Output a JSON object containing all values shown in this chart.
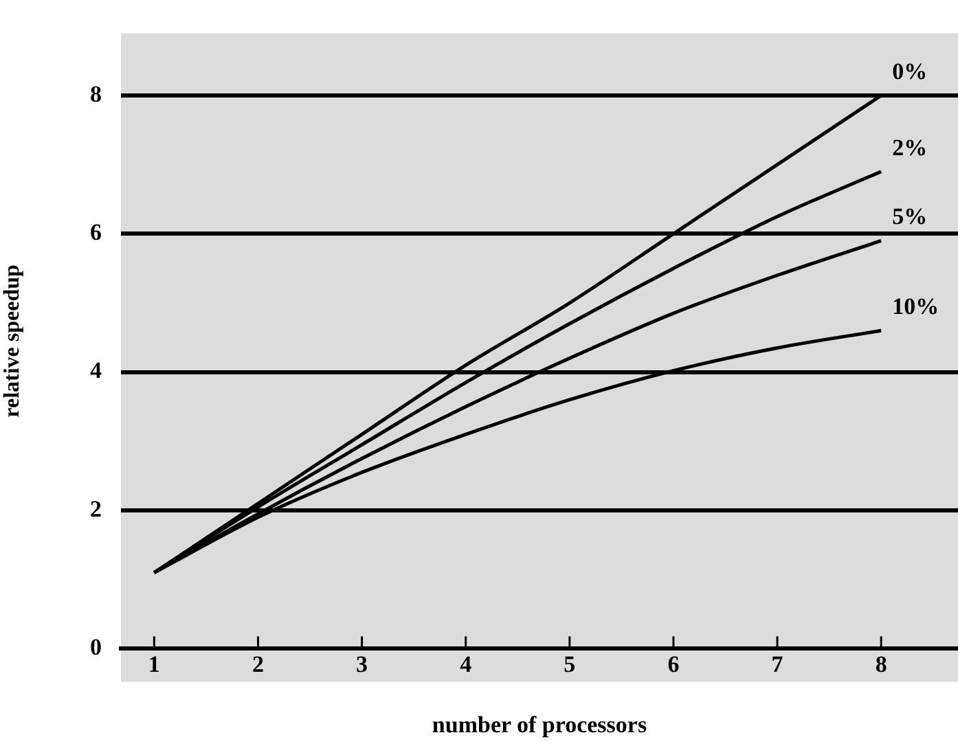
{
  "chart_data": {
    "type": "line",
    "xlabel": "number of processors",
    "ylabel": "relative speedup",
    "x": [
      1,
      2,
      3,
      4,
      5,
      6,
      7,
      8
    ],
    "series": [
      {
        "name": "0%",
        "color": "#000000",
        "values": [
          1.1,
          2.1,
          3.1,
          4.1,
          5.0,
          6.0,
          7.0,
          8.0
        ]
      },
      {
        "name": "2%",
        "color": "#000000",
        "values": [
          1.1,
          2.05,
          2.95,
          3.85,
          4.7,
          5.5,
          6.25,
          6.9
        ]
      },
      {
        "name": "5%",
        "color": "#000000",
        "values": [
          1.1,
          1.95,
          2.75,
          3.5,
          4.2,
          4.85,
          5.4,
          5.9
        ]
      },
      {
        "name": "10%",
        "color": "#000000",
        "values": [
          1.1,
          1.9,
          2.55,
          3.1,
          3.6,
          4.02,
          4.35,
          4.6
        ]
      }
    ],
    "xlim": [
      0.68,
      8.74
    ],
    "xticks": [
      1,
      2,
      3,
      4,
      5,
      6,
      7,
      8
    ],
    "ylim": [
      0,
      8.9
    ],
    "yticks": [
      0,
      2,
      4,
      6,
      8
    ],
    "grid": "y",
    "legend": false,
    "marker": "none",
    "line_style": "solid"
  }
}
